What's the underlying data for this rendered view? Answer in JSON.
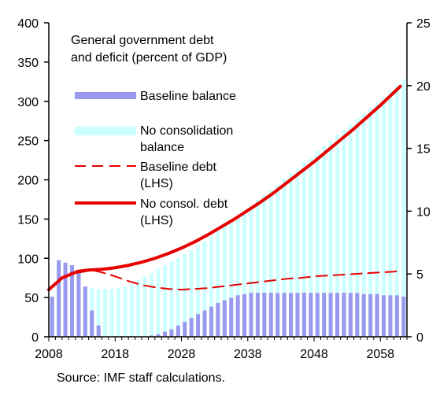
{
  "chart_data": {
    "type": "bar",
    "title_lines": [
      "General government debt",
      "and deficit (percent of GDP)"
    ],
    "source": "Source: IMF staff calculations.",
    "x_start": 2008,
    "x_end": 2062,
    "x_ticks": [
      2008,
      2018,
      2028,
      2038,
      2048,
      2058
    ],
    "left_axis": {
      "ylim": [
        0,
        400
      ],
      "ticks": [
        0,
        50,
        100,
        150,
        200,
        250,
        300,
        350,
        400
      ]
    },
    "right_axis": {
      "ylim": [
        0,
        25
      ],
      "ticks": [
        0,
        5,
        10,
        15,
        20,
        25
      ]
    },
    "grid": false,
    "legend": [
      {
        "key": "baseline_balance",
        "lines": [
          "Baseline balance"
        ]
      },
      {
        "key": "no_consolidation_balance",
        "lines": [
          "No consolidation",
          "balance"
        ]
      },
      {
        "key": "baseline_debt",
        "lines": [
          "Baseline debt",
          "(LHS)"
        ]
      },
      {
        "key": "no_consol_debt",
        "lines": [
          "No consol. debt",
          "(LHS)"
        ]
      }
    ],
    "colors": {
      "baseline_balance": "#9999ee",
      "no_consolidation_balance": "#ccffff",
      "baseline_debt": "#e60000",
      "no_consol_debt": "#e60000"
    },
    "series": [
      {
        "key": "no_consolidation_balance",
        "axis": "right",
        "kind": "bar",
        "x": [
          2008,
          2009,
          2010,
          2011,
          2012,
          2013,
          2014,
          2015,
          2016,
          2017,
          2018,
          2019,
          2020,
          2021,
          2022,
          2023,
          2024,
          2025,
          2026,
          2027,
          2028,
          2029,
          2030,
          2031,
          2032,
          2033,
          2034,
          2035,
          2036,
          2037,
          2038,
          2039,
          2040,
          2041,
          2042,
          2043,
          2044,
          2045,
          2046,
          2047,
          2048,
          2049,
          2050,
          2051,
          2052,
          2053,
          2054,
          2055,
          2056,
          2057,
          2058,
          2059,
          2060,
          2061
        ],
        "values": [
          3.2,
          4.0,
          4.2,
          4.1,
          4.0,
          3.9,
          3.9,
          3.8,
          3.8,
          3.8,
          3.9,
          4.0,
          4.2,
          4.5,
          4.8,
          5.1,
          5.4,
          5.7,
          6.0,
          6.3,
          6.6,
          6.9,
          7.3,
          7.6,
          8.0,
          8.4,
          8.8,
          9.2,
          9.6,
          10.0,
          10.4,
          10.9,
          11.3,
          11.7,
          12.1,
          12.6,
          13.0,
          13.4,
          13.9,
          14.3,
          14.8,
          15.2,
          15.6,
          16.1,
          16.5,
          16.9,
          17.4,
          17.8,
          18.2,
          18.7,
          19.1,
          19.6,
          20.0,
          20.5
        ]
      },
      {
        "key": "baseline_balance",
        "axis": "right",
        "kind": "bar",
        "x": [
          2008,
          2009,
          2010,
          2011,
          2012,
          2013,
          2014,
          2015,
          2016,
          2017,
          2018,
          2019,
          2020,
          2021,
          2022,
          2023,
          2024,
          2025,
          2026,
          2027,
          2028,
          2029,
          2030,
          2031,
          2032,
          2033,
          2034,
          2035,
          2036,
          2037,
          2038,
          2039,
          2040,
          2041,
          2042,
          2043,
          2044,
          2045,
          2046,
          2047,
          2048,
          2049,
          2050,
          2051,
          2052,
          2053,
          2054,
          2055,
          2056,
          2057,
          2058,
          2059,
          2060,
          2061
        ],
        "values": [
          3.2,
          6.1,
          5.9,
          5.7,
          5.1,
          4.0,
          2.1,
          0.9,
          0.0,
          0.0,
          0.0,
          0.0,
          0.0,
          0.0,
          0.0,
          0.1,
          0.2,
          0.4,
          0.6,
          0.9,
          1.2,
          1.5,
          1.8,
          2.1,
          2.4,
          2.7,
          2.9,
          3.1,
          3.3,
          3.4,
          3.5,
          3.5,
          3.5,
          3.5,
          3.5,
          3.5,
          3.5,
          3.5,
          3.5,
          3.5,
          3.5,
          3.5,
          3.5,
          3.5,
          3.5,
          3.5,
          3.5,
          3.4,
          3.4,
          3.4,
          3.3,
          3.3,
          3.3,
          3.2
        ]
      },
      {
        "key": "baseline_debt",
        "axis": "left",
        "kind": "line",
        "style": "dashed",
        "x": [
          2008,
          2010,
          2012,
          2014,
          2016,
          2018,
          2020,
          2022,
          2024,
          2026,
          2028,
          2030,
          2032,
          2034,
          2036,
          2038,
          2040,
          2042,
          2044,
          2046,
          2048,
          2050,
          2052,
          2054,
          2056,
          2058,
          2060,
          2061
        ],
        "values": [
          60,
          75,
          84,
          86,
          82,
          77,
          71,
          66,
          63,
          61,
          60,
          61,
          62,
          64,
          66,
          68,
          70,
          72,
          74,
          75,
          77,
          78,
          79,
          80,
          81,
          82,
          83,
          84
        ]
      },
      {
        "key": "no_consol_debt",
        "axis": "left",
        "kind": "line",
        "style": "solid",
        "x": [
          2008,
          2010,
          2012,
          2014,
          2016,
          2018,
          2020,
          2022,
          2024,
          2026,
          2028,
          2030,
          2032,
          2034,
          2036,
          2038,
          2040,
          2042,
          2044,
          2046,
          2048,
          2050,
          2052,
          2054,
          2056,
          2058,
          2060,
          2061
        ],
        "values": [
          60,
          75,
          82,
          85,
          86,
          88,
          91,
          95,
          100,
          106,
          113,
          121,
          130,
          140,
          150,
          161,
          172,
          184,
          197,
          210,
          223,
          237,
          251,
          265,
          280,
          295,
          311,
          319
        ]
      }
    ]
  }
}
